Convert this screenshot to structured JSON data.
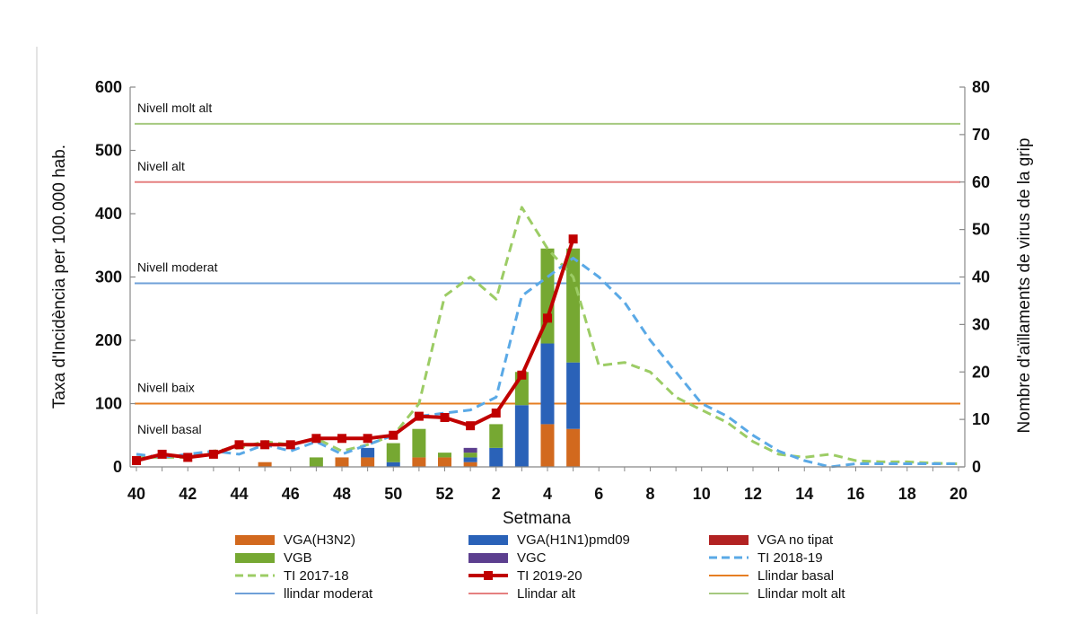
{
  "chart_data": {
    "type": "bar+line",
    "xlabel": "Setmana",
    "ylabel_left": "Taxa d'Incidència per 100.000 hab.",
    "ylabel_right": "Nombre d'aïllaments de virus de la grip",
    "ylim_left": [
      0,
      600
    ],
    "ylim_right": [
      0,
      80
    ],
    "yticks_left": [
      "0",
      "100",
      "200",
      "300",
      "400",
      "500",
      "600"
    ],
    "yticks_right": [
      "0",
      "10",
      "20",
      "30",
      "40",
      "50",
      "60",
      "70",
      "80"
    ],
    "weeks": [
      40,
      41,
      42,
      43,
      44,
      45,
      46,
      47,
      48,
      49,
      50,
      51,
      52,
      1,
      2,
      3,
      4,
      5,
      6,
      7,
      8,
      9,
      10,
      11,
      12,
      13,
      14,
      15,
      16,
      17,
      18,
      19,
      20
    ],
    "xtick_labels": [
      "40",
      "",
      "42",
      "",
      "44",
      "",
      "46",
      "",
      "48",
      "",
      "50",
      "",
      "52",
      "",
      "2",
      "",
      "4",
      "",
      "6",
      "",
      "8",
      "",
      "10",
      "",
      "12",
      "",
      "14",
      "",
      "16",
      "",
      "18",
      "",
      "20"
    ],
    "bar_series": [
      {
        "name": "VGA(H3N2)",
        "color": "#d2691e",
        "values": [
          0,
          0,
          0,
          0,
          0,
          1,
          0,
          0,
          2,
          2,
          0,
          2,
          2,
          1,
          0,
          0,
          9,
          8,
          0,
          0,
          0,
          0,
          0,
          0,
          0,
          0,
          0,
          0,
          0,
          0,
          0,
          0,
          0
        ]
      },
      {
        "name": "VGA(H1N1)pmd09",
        "color": "#2a62b8",
        "values": [
          0,
          0,
          0,
          0,
          0,
          0,
          0,
          0,
          0,
          2,
          1,
          0,
          0,
          1,
          4,
          13,
          17,
          14,
          0,
          0,
          0,
          0,
          0,
          0,
          0,
          0,
          0,
          0,
          0,
          0,
          0,
          0,
          0
        ]
      },
      {
        "name": "VGA no tipat",
        "color": "#b22222",
        "values": [
          0,
          0,
          0,
          0,
          0,
          0,
          0,
          0,
          0,
          0,
          0,
          0,
          0,
          0,
          0,
          0,
          0,
          0,
          0,
          0,
          0,
          0,
          0,
          0,
          0,
          0,
          0,
          0,
          0,
          0,
          0,
          0,
          0
        ]
      },
      {
        "name": "VGB",
        "color": "#76a832",
        "values": [
          0,
          0,
          0,
          0,
          0,
          0,
          0,
          2,
          0,
          0,
          4,
          6,
          1,
          1,
          5,
          7,
          20,
          24,
          0,
          0,
          0,
          0,
          0,
          0,
          0,
          0,
          0,
          0,
          0,
          0,
          0,
          0,
          0
        ]
      },
      {
        "name": "VGC",
        "color": "#5c3f8f",
        "values": [
          0,
          0,
          0,
          0,
          0,
          0,
          0,
          0,
          0,
          0,
          0,
          0,
          0,
          1,
          0,
          0,
          0,
          0,
          0,
          0,
          0,
          0,
          0,
          0,
          0,
          0,
          0,
          0,
          0,
          0,
          0,
          0,
          0
        ]
      }
    ],
    "line_series": [
      {
        "name": "TI 2017-18",
        "color": "#9ccc65",
        "style": "dashed",
        "values": [
          15,
          15,
          15,
          25,
          30,
          40,
          35,
          45,
          25,
          35,
          50,
          100,
          270,
          300,
          265,
          410,
          345,
          300,
          160,
          165,
          150,
          110,
          90,
          70,
          40,
          20,
          15,
          20,
          10,
          8,
          8,
          6,
          5
        ]
      },
      {
        "name": "TI 2018-19",
        "color": "#5aa9e6",
        "style": "dashed",
        "values": [
          20,
          15,
          20,
          25,
          20,
          35,
          25,
          40,
          20,
          35,
          50,
          80,
          85,
          90,
          110,
          270,
          300,
          330,
          300,
          260,
          200,
          150,
          100,
          80,
          50,
          25,
          10,
          0,
          5,
          5,
          5,
          5,
          5
        ]
      },
      {
        "name": "TI 2019-20",
        "color": "#c00000",
        "style": "solid-markers",
        "values": [
          10,
          20,
          15,
          20,
          35,
          35,
          35,
          45,
          45,
          45,
          50,
          80,
          78,
          65,
          85,
          145,
          235,
          360
        ]
      }
    ],
    "thresholds": [
      {
        "name": "Llindar basal",
        "label": "Nivell basal",
        "value": 0,
        "color": "#e67e22",
        "draw_line": false
      },
      {
        "name": "Llindar baix",
        "label": "Nivell baix",
        "value": 100,
        "color": "#e67e22",
        "draw_line": true
      },
      {
        "name": "llindar moderat",
        "label": "Nivell moderat",
        "value": 290,
        "color": "#6fa0d8",
        "draw_line": true
      },
      {
        "name": "Llindar alt",
        "label": "Nivell alt",
        "value": 450,
        "color": "#e58080",
        "draw_line": true
      },
      {
        "name": "Llindar molt alt",
        "label": "Nivell molt alt",
        "value": 542,
        "color": "#a5c97f",
        "draw_line": true
      }
    ],
    "legend": [
      {
        "label": "VGA(H3N2)",
        "kind": "box",
        "color": "#d2691e"
      },
      {
        "label": "VGA(H1N1)pmd09",
        "kind": "box",
        "color": "#2a62b8"
      },
      {
        "label": "VGA no tipat",
        "kind": "box",
        "color": "#b22222"
      },
      {
        "label": "VGB",
        "kind": "box",
        "color": "#76a832"
      },
      {
        "label": "VGC",
        "kind": "box",
        "color": "#5c3f8f"
      },
      {
        "label": "TI 2018-19",
        "kind": "dash",
        "color": "#5aa9e6"
      },
      {
        "label": "TI 2017-18",
        "kind": "dash",
        "color": "#9ccc65"
      },
      {
        "label": "TI 2019-20",
        "kind": "marker",
        "color": "#c00000"
      },
      {
        "label": "Llindar basal",
        "kind": "line",
        "color": "#e67e22"
      },
      {
        "label": "llindar moderat",
        "kind": "line",
        "color": "#6fa0d8"
      },
      {
        "label": "Llindar alt",
        "kind": "line",
        "color": "#e58080"
      },
      {
        "label": "Llindar molt alt",
        "kind": "line",
        "color": "#a5c97f"
      }
    ]
  }
}
